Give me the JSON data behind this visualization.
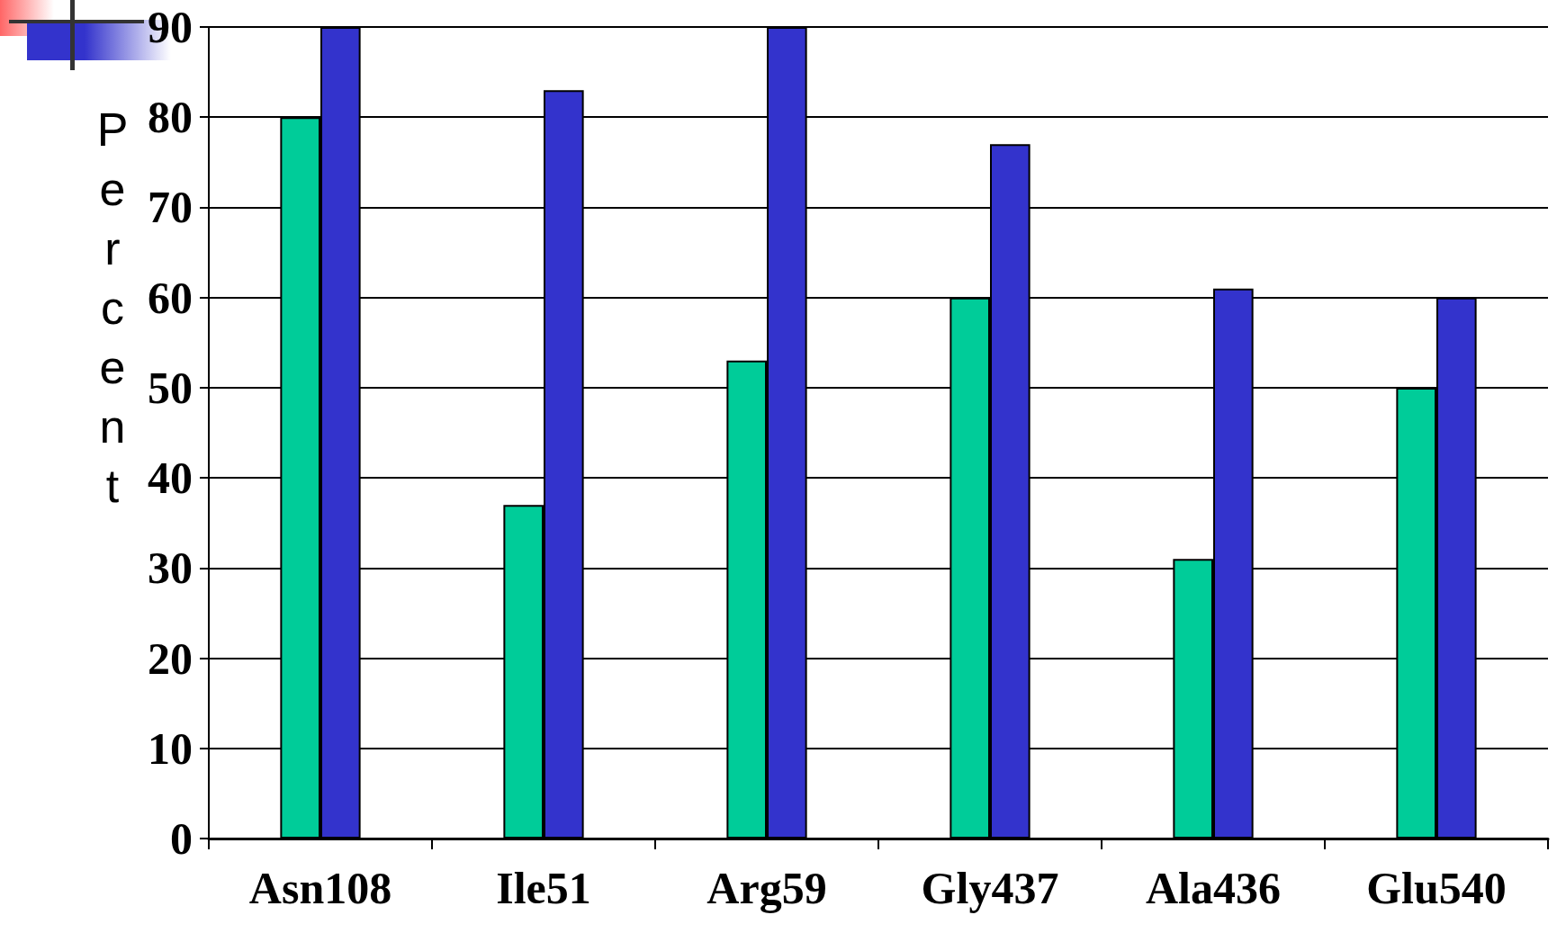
{
  "chart_data": {
    "type": "bar",
    "ylabel": "Percent",
    "categories": [
      "Asn108",
      "Ile51",
      "Arg59",
      "Gly437",
      "Ala436",
      "Glu540"
    ],
    "series": [
      {
        "color": "#00cc99",
        "values": [
          80,
          37,
          53,
          60,
          31,
          50
        ]
      },
      {
        "color": "#3333cc",
        "values": [
          90,
          83,
          90,
          77,
          61,
          60
        ]
      }
    ],
    "ylim": [
      0,
      90
    ],
    "yticks": [
      0,
      10,
      20,
      30,
      40,
      50,
      60,
      70,
      80,
      90
    ],
    "grid": "y"
  }
}
